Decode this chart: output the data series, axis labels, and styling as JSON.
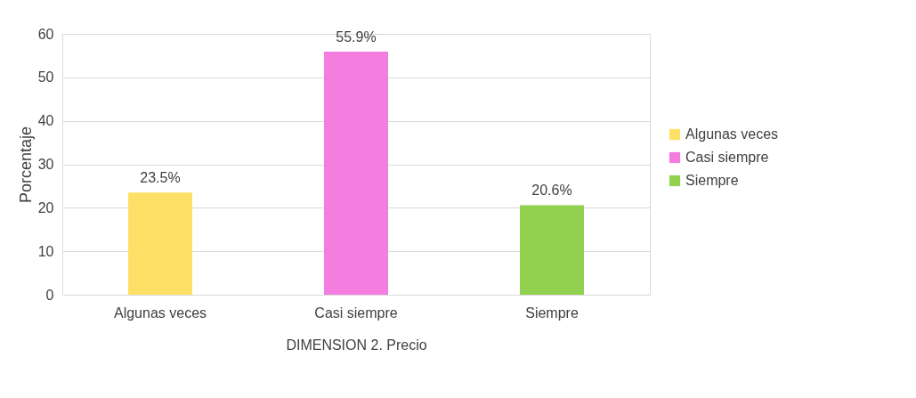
{
  "chart_data": {
    "type": "bar",
    "categories": [
      "Algunas veces",
      "Casi siempre",
      "Siempre"
    ],
    "series": [
      {
        "name": "Algunas veces",
        "color": "#ffe066",
        "values": [
          23.5,
          null,
          null
        ],
        "value_labels": [
          "23.5%",
          null,
          null
        ]
      },
      {
        "name": "Casi siempre",
        "color": "#f47ee0",
        "values": [
          null,
          55.9,
          null
        ],
        "value_labels": [
          null,
          "55.9%",
          null
        ]
      },
      {
        "name": "Siempre",
        "color": "#92d050",
        "values": [
          null,
          null,
          20.6
        ],
        "value_labels": [
          null,
          null,
          "20.6%"
        ]
      }
    ],
    "xlabel": "DIMENSION 2. Precio",
    "ylabel": "Porcentaje",
    "ylim": [
      0,
      60
    ],
    "yticks": [
      0,
      10,
      20,
      30,
      40,
      50,
      60
    ],
    "grid": "y",
    "legend": "right"
  }
}
